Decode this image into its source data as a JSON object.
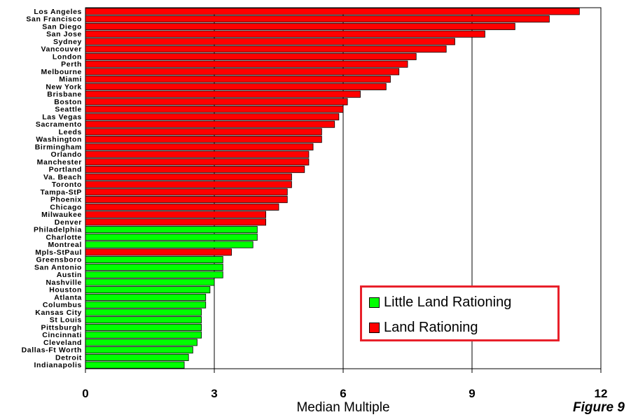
{
  "chart_data": {
    "type": "bar",
    "orientation": "horizontal",
    "xlabel": "Median Multiple",
    "xlim": [
      0,
      12
    ],
    "xticks": [
      "0",
      "3",
      "6",
      "9",
      "12"
    ],
    "grid": "vertical lines at 3, 6, 9",
    "legend_position": "bottom-right",
    "figure_label": "Figure 9",
    "series": [
      {
        "name": "Little Land Rationing",
        "color": "#00ff00"
      },
      {
        "name": "Land Rationing",
        "color": "#ff0000"
      }
    ],
    "categories": [
      "Los Angeles",
      "San Francisco",
      "San Diego",
      "San Jose",
      "Sydney",
      "Vancouver",
      "London",
      "Perth",
      "Melbourne",
      "Miami",
      "New York",
      "Brisbane",
      "Boston",
      "Seattle",
      "Las Vegas",
      "Sacramento",
      "Leeds",
      "Washington",
      "Birmingham",
      "Orlando",
      "Manchester",
      "Portland",
      "Va. Beach",
      "Toronto",
      "Tampa-StP",
      "Phoenix",
      "Chicago",
      "Milwaukee",
      "Denver",
      "Philadelphia",
      "Charlotte",
      "Montreal",
      "Mpls-StPaul",
      "Greensboro",
      "San Antonio",
      "Austin",
      "Nashville",
      "Houston",
      "Atlanta",
      "Columbus",
      "Kansas City",
      "St Louis",
      "Pittsburgh",
      "Cincinnati",
      "Cleveland",
      "Dallas-Ft Worth",
      "Detroit",
      "Indianapolis"
    ],
    "values": [
      11.5,
      10.8,
      10.0,
      9.3,
      8.6,
      8.4,
      7.7,
      7.5,
      7.3,
      7.1,
      7.0,
      6.4,
      6.1,
      6.0,
      5.9,
      5.8,
      5.5,
      5.5,
      5.3,
      5.2,
      5.2,
      5.1,
      4.8,
      4.8,
      4.7,
      4.7,
      4.5,
      4.2,
      4.2,
      4.0,
      4.0,
      3.9,
      3.4,
      3.2,
      3.2,
      3.2,
      3.0,
      2.9,
      2.8,
      2.8,
      2.7,
      2.7,
      2.7,
      2.7,
      2.6,
      2.5,
      2.4,
      2.3
    ],
    "group": [
      "Land Rationing",
      "Land Rationing",
      "Land Rationing",
      "Land Rationing",
      "Land Rationing",
      "Land Rationing",
      "Land Rationing",
      "Land Rationing",
      "Land Rationing",
      "Land Rationing",
      "Land Rationing",
      "Land Rationing",
      "Land Rationing",
      "Land Rationing",
      "Land Rationing",
      "Land Rationing",
      "Land Rationing",
      "Land Rationing",
      "Land Rationing",
      "Land Rationing",
      "Land Rationing",
      "Land Rationing",
      "Land Rationing",
      "Land Rationing",
      "Land Rationing",
      "Land Rationing",
      "Land Rationing",
      "Land Rationing",
      "Land Rationing",
      "Little Land Rationing",
      "Little Land Rationing",
      "Little Land Rationing",
      "Land Rationing",
      "Little Land Rationing",
      "Little Land Rationing",
      "Little Land Rationing",
      "Little Land Rationing",
      "Little Land Rationing",
      "Little Land Rationing",
      "Little Land Rationing",
      "Little Land Rationing",
      "Little Land Rationing",
      "Little Land Rationing",
      "Little Land Rationing",
      "Little Land Rationing",
      "Little Land Rationing",
      "Little Land Rationing",
      "Little Land Rationing"
    ]
  }
}
